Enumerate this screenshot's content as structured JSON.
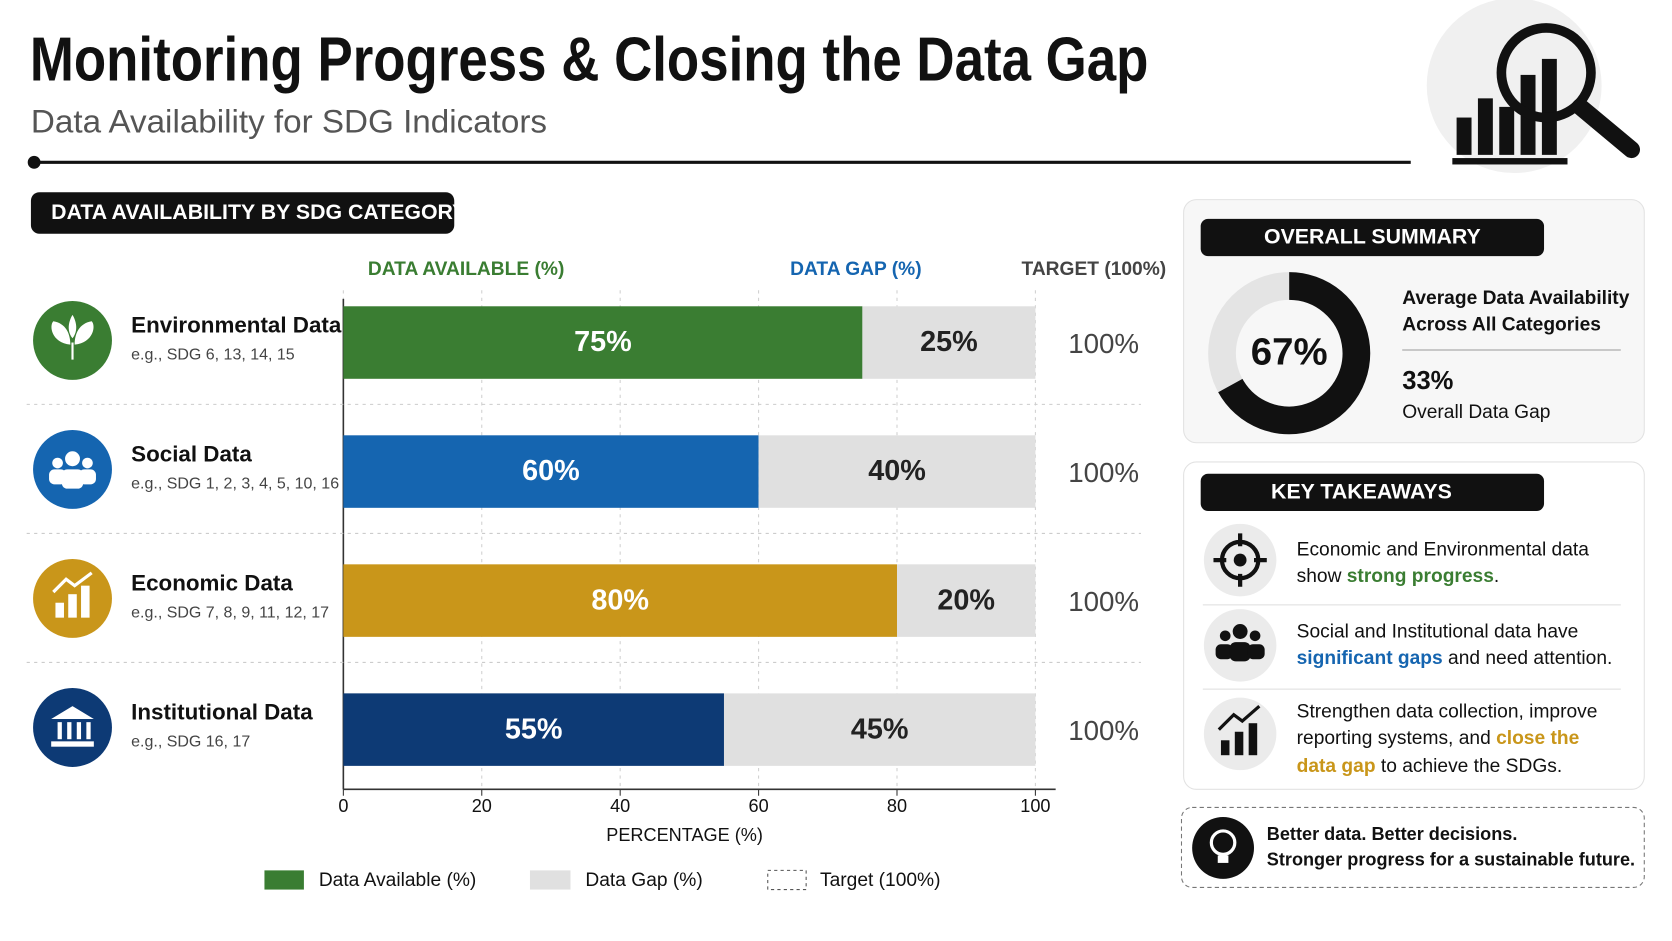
{
  "header": {
    "title": "Monitoring Progress & Closing the Data Gap",
    "subtitle": "Data Availability for SDG Indicators"
  },
  "chart_data": {
    "type": "bar",
    "orientation": "horizontal",
    "stacked": true,
    "title": "DATA AVAILABILITY BY SDG CATEGORY",
    "column_headers": [
      "DATA AVAILABLE (%)",
      "DATA GAP (%)",
      "TARGET (100%)"
    ],
    "column_header_colors": [
      "#3a7d32",
      "#1565b0",
      "#444444"
    ],
    "categories": [
      "Environmental Data",
      "Social Data",
      "Economic Data",
      "Institutional Data"
    ],
    "category_notes": [
      "e.g., SDG 6, 13, 14, 15",
      "e.g., SDG 1, 2, 3, 4, 5, 10, 16",
      "e.g., SDG 7, 8, 9, 11, 12, 17",
      "e.g., SDG 16, 17"
    ],
    "series": [
      {
        "name": "Data Available (%)",
        "colors": [
          "#3a7d32",
          "#1565b0",
          "#c9961a",
          "#0d3a75"
        ],
        "values": [
          75,
          60,
          80,
          55
        ],
        "value_labels": [
          "75%",
          "60%",
          "80%",
          "55%"
        ]
      },
      {
        "name": "Data Gap (%)",
        "color": "#e0e0e0",
        "values": [
          25,
          40,
          20,
          45
        ],
        "value_labels": [
          "25%",
          "40%",
          "20%",
          "45%"
        ]
      }
    ],
    "target": {
      "name": "Target (100%)",
      "values": [
        100,
        100,
        100,
        100
      ],
      "value_labels": [
        "100%",
        "100%",
        "100%",
        "100%"
      ]
    },
    "xlim": [
      0,
      100
    ],
    "xticks": [
      0,
      20,
      40,
      60,
      80,
      100
    ],
    "xlabel": "PERCENTAGE  (%)",
    "grid": true
  },
  "summary": {
    "title": "OVERALL SUMMARY",
    "value": 67,
    "value_label": "67%",
    "description": [
      "Average Data Availability",
      "Across All Categories"
    ],
    "gap_label": "33%",
    "gap_description": "Overall Data Gap"
  },
  "takeaways": {
    "title": "KEY TAKEAWAYS",
    "items": [
      {
        "lines": [
          [
            {
              "text": "Economic and Environmental data"
            }
          ],
          [
            {
              "text": "show "
            },
            {
              "text": "strong progress",
              "color": "#3a7d32"
            },
            {
              "text": "."
            }
          ]
        ]
      },
      {
        "lines": [
          [
            {
              "text": "Social and Institutional data have"
            }
          ],
          [
            {
              "text": "significant gaps",
              "color": "#1565b0"
            },
            {
              "text": " and need attention."
            }
          ]
        ]
      },
      {
        "lines": [
          [
            {
              "text": "Strengthen data collection, improve"
            }
          ],
          [
            {
              "text": "reporting systems, and "
            },
            {
              "text": "close the",
              "color": "#c9961a"
            }
          ],
          [
            {
              "text": "data gap",
              "color": "#c9961a"
            },
            {
              "text": " to achieve the SDGs."
            }
          ]
        ]
      }
    ]
  },
  "footer": [
    "Better data. Better decisions.",
    "Stronger progress for a sustainable future."
  ]
}
